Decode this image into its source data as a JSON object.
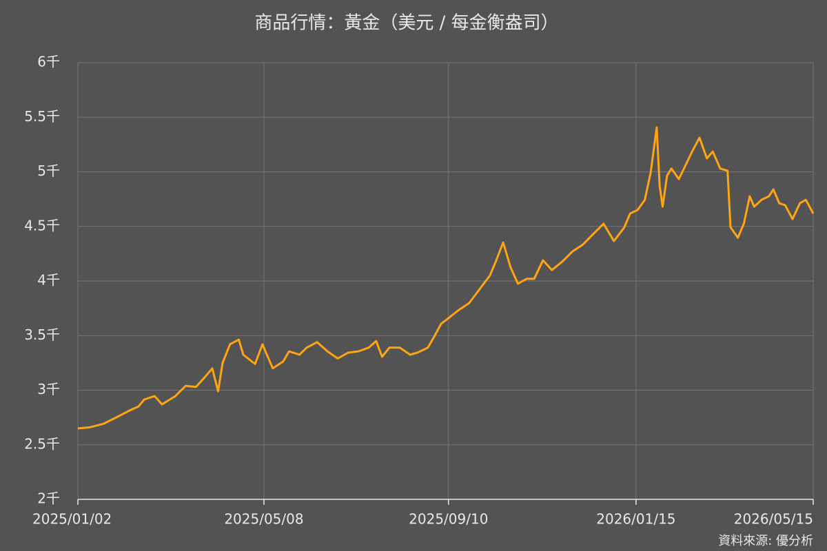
{
  "chart_data": {
    "type": "line",
    "title": "商品行情：黃金（美元 / 每金衡盎司）",
    "source": "資料來源: 優分析",
    "x": [
      "2025/01/02",
      "2025/01/10",
      "2025/01/19",
      "2025/01/29",
      "2025/02/07",
      "2025/02/12",
      "2025/02/16",
      "2025/02/23",
      "2025/02/28",
      "2025/03/09",
      "2025/03/16",
      "2025/03/23",
      "2025/03/30",
      "2025/04/03",
      "2025/04/07",
      "2025/04/10",
      "2025/04/15",
      "2025/04/21",
      "2025/04/24",
      "2025/05/02",
      "2025/05/07",
      "2025/05/14",
      "2025/05/21",
      "2025/05/25",
      "2025/06/01",
      "2025/06/06",
      "2025/06/13",
      "2025/06/20",
      "2025/06/27",
      "2025/07/04",
      "2025/07/11",
      "2025/07/18",
      "2025/07/23",
      "2025/07/27",
      "2025/08/01",
      "2025/08/08",
      "2025/08/15",
      "2025/08/20",
      "2025/08/27",
      "2025/08/31",
      "2025/09/05",
      "2025/09/10",
      "2025/09/17",
      "2025/09/24",
      "2025/10/01",
      "2025/10/08",
      "2025/10/12",
      "2025/10/17",
      "2025/10/22",
      "2025/10/27",
      "2025/11/02",
      "2025/11/07",
      "2025/11/13",
      "2025/11/19",
      "2025/11/26",
      "2025/12/03",
      "2025/12/10",
      "2025/12/17",
      "2025/12/24",
      "2025/12/31",
      "2026/01/07",
      "2026/01/11",
      "2026/01/16",
      "2026/01/21",
      "2026/01/25",
      "2026/01/29",
      "2026/01/31",
      "2026/02/02",
      "2026/02/05",
      "2026/02/08",
      "2026/02/13",
      "2026/02/18",
      "2026/02/22",
      "2026/02/27",
      "2026/03/04",
      "2026/03/08",
      "2026/03/13",
      "2026/03/18",
      "2026/03/20",
      "2026/03/25",
      "2026/03/29",
      "2026/04/02",
      "2026/04/05",
      "2026/04/10",
      "2026/04/15",
      "2026/04/18",
      "2026/04/22",
      "2026/04/26",
      "2026/05/01",
      "2026/05/06",
      "2026/05/10",
      "2026/05/15"
    ],
    "series": [
      {
        "name": "黃金",
        "color": "#ffa514",
        "values": [
          2650,
          2660,
          2690,
          2757,
          2820,
          2850,
          2915,
          2946,
          2870,
          2946,
          3040,
          3030,
          3135,
          3200,
          2990,
          3250,
          3420,
          3463,
          3325,
          3240,
          3420,
          3200,
          3262,
          3356,
          3325,
          3390,
          3440,
          3356,
          3290,
          3344,
          3356,
          3390,
          3450,
          3306,
          3390,
          3390,
          3325,
          3344,
          3390,
          3483,
          3608,
          3660,
          3735,
          3798,
          3924,
          4050,
          4177,
          4353,
          4126,
          3975,
          4020,
          4020,
          4190,
          4100,
          4177,
          4271,
          4334,
          4430,
          4524,
          4366,
          4490,
          4618,
          4650,
          4744,
          5000,
          5407,
          4870,
          4681,
          4965,
          5030,
          4934,
          5072,
          5186,
          5313,
          5123,
          5186,
          5030,
          5010,
          4492,
          4397,
          4524,
          4776,
          4681,
          4744,
          4776,
          4839,
          4713,
          4694,
          4568,
          4713,
          4744,
          4618
        ]
      }
    ],
    "xlim": [
      "2025/01/02",
      "2026/05/15"
    ],
    "xticks": [
      "2025/01/02",
      "2025/05/08",
      "2025/09/10",
      "2026/01/15",
      "2026/05/15"
    ],
    "ylim": [
      2000,
      6000
    ],
    "yticks": [
      {
        "value": 2000,
        "label": "2千"
      },
      {
        "value": 2500,
        "label": "2.5千"
      },
      {
        "value": 3000,
        "label": "3千"
      },
      {
        "value": 3500,
        "label": "3.5千"
      },
      {
        "value": 4000,
        "label": "4千"
      },
      {
        "value": 4500,
        "label": "4.5千"
      },
      {
        "value": 5000,
        "label": "5千"
      },
      {
        "value": 5500,
        "label": "5.5千"
      },
      {
        "value": 6000,
        "label": "6千"
      }
    ],
    "grid": true
  }
}
